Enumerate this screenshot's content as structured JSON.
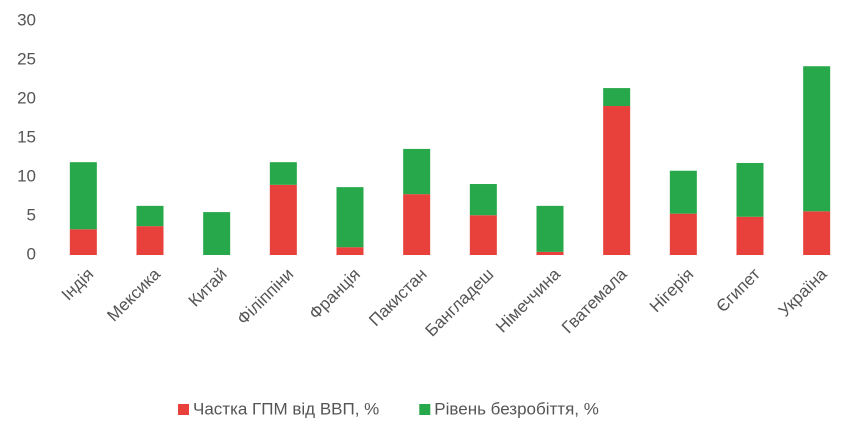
{
  "chart_data": {
    "type": "stacked_bar",
    "categories": [
      "Індія",
      "Мексика",
      "Китай",
      "Філіппіни",
      "Франція",
      "Пакистан",
      "Бангладеш",
      "Німеччина",
      "Гватемала",
      "Нігерія",
      "Єгипет",
      "Україна"
    ],
    "series": [
      {
        "name": "Частка ГПМ від ВВП, %",
        "color": "#e8403b",
        "values": [
          3.3,
          3.7,
          0,
          9.0,
          1.0,
          7.8,
          5.1,
          0.4,
          19.1,
          5.3,
          4.9,
          5.6
        ]
      },
      {
        "name": "Рівень безробіття, %",
        "color": "#27a84a",
        "values": [
          8.6,
          2.6,
          5.5,
          2.9,
          7.7,
          5.8,
          4.0,
          5.9,
          2.3,
          5.5,
          6.9,
          18.6
        ]
      }
    ],
    "ylim": [
      0,
      30
    ],
    "yticks": [
      0,
      5,
      10,
      15,
      20,
      25,
      30
    ],
    "grid": false,
    "legend": "bottom"
  }
}
